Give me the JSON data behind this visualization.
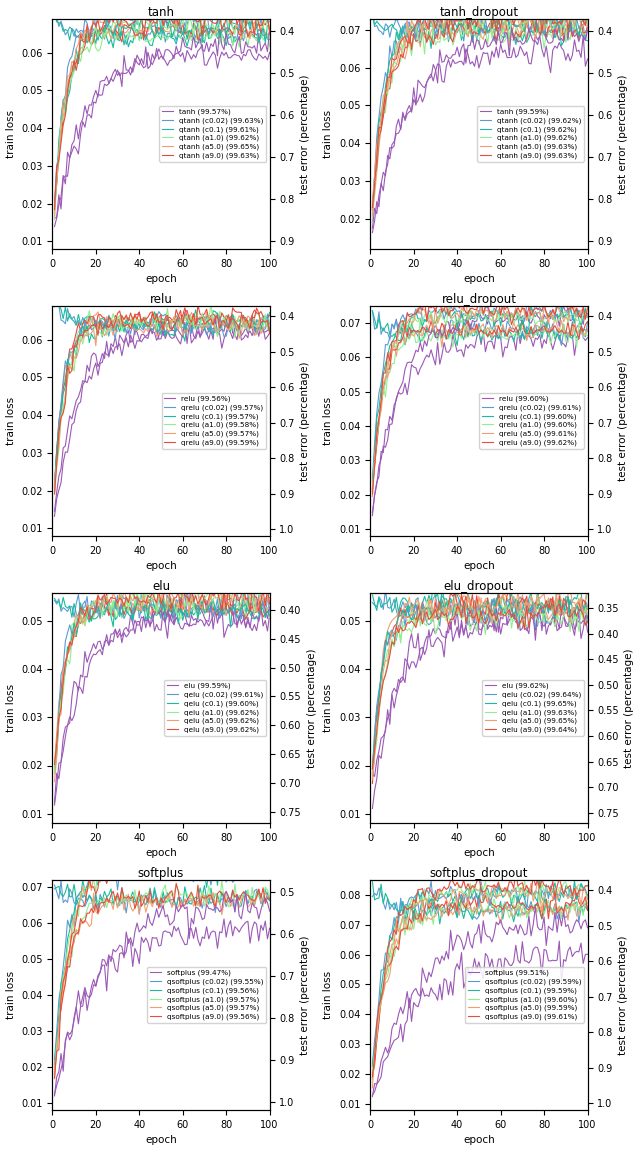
{
  "subplots": [
    {
      "title": "tanh",
      "base_name": "tanh",
      "variants": [
        "tanh",
        "qtanh (c0.02)",
        "qtanh (c0.1)",
        "qtanh (a1.0)",
        "qtanh (a5.0)",
        "qtanh (a9.0)"
      ],
      "accuracies": [
        "99.57%",
        "99.63%",
        "99.61%",
        "99.62%",
        "99.65%",
        "99.63%"
      ],
      "train_ylim": [
        0.008,
        0.069
      ],
      "test_ylim": [
        0.92,
        0.37
      ],
      "train_final": [
        0.059,
        0.065,
        0.064,
        0.064,
        0.066,
        0.066
      ],
      "train_noise": [
        0.0015,
        0.0012,
        0.0012,
        0.0012,
        0.0012,
        0.0012
      ],
      "train_steep": [
        0.08,
        0.22,
        0.2,
        0.18,
        0.18,
        0.18
      ],
      "train_init": [
        0.01,
        0.071,
        0.071,
        0.01,
        0.01,
        0.01
      ],
      "test_final": [
        0.43,
        0.37,
        0.39,
        0.38,
        0.35,
        0.37
      ],
      "test_init": [
        0.9,
        0.9,
        0.9,
        0.9,
        0.9,
        0.9
      ],
      "test_steep": [
        0.06,
        0.2,
        0.18,
        0.16,
        0.16,
        0.16
      ],
      "test_noise": [
        0.015,
        0.015,
        0.015,
        0.015,
        0.015,
        0.015
      ]
    },
    {
      "title": "tanh_dropout",
      "base_name": "tanh",
      "variants": [
        "tanh",
        "qtanh (c0.02)",
        "qtanh (c0.1)",
        "qtanh (a1.0)",
        "qtanh (a5.0)",
        "qtanh (a9.0)"
      ],
      "accuracies": [
        "99.59%",
        "99.62%",
        "99.62%",
        "99.62%",
        "99.63%",
        "99.63%"
      ],
      "train_ylim": [
        0.012,
        0.073
      ],
      "test_ylim": [
        0.92,
        0.37
      ],
      "train_final": [
        0.064,
        0.07,
        0.069,
        0.069,
        0.07,
        0.07
      ],
      "train_noise": [
        0.0018,
        0.0015,
        0.0015,
        0.0015,
        0.0015,
        0.0015
      ],
      "train_steep": [
        0.07,
        0.2,
        0.18,
        0.16,
        0.16,
        0.16
      ],
      "train_init": [
        0.013,
        0.073,
        0.073,
        0.013,
        0.013,
        0.013
      ],
      "test_final": [
        0.41,
        0.38,
        0.38,
        0.38,
        0.37,
        0.37
      ],
      "test_init": [
        0.9,
        0.9,
        0.9,
        0.9,
        0.9,
        0.9
      ],
      "test_steep": [
        0.06,
        0.2,
        0.18,
        0.16,
        0.16,
        0.16
      ],
      "test_noise": [
        0.015,
        0.015,
        0.015,
        0.015,
        0.015,
        0.015
      ]
    },
    {
      "title": "relu",
      "base_name": "relu",
      "variants": [
        "relu",
        "qrelu (c0.02)",
        "qrelu (c0.1)",
        "qrelu (a1.0)",
        "qrelu (a5.0)",
        "qrelu (a9.0)"
      ],
      "accuracies": [
        "99.56%",
        "99.57%",
        "99.57%",
        "99.58%",
        "99.57%",
        "99.59%"
      ],
      "train_ylim": [
        0.008,
        0.069
      ],
      "test_ylim": [
        1.02,
        0.37
      ],
      "train_final": [
        0.062,
        0.065,
        0.065,
        0.065,
        0.065,
        0.066
      ],
      "train_noise": [
        0.0015,
        0.0012,
        0.0012,
        0.0012,
        0.0012,
        0.0012
      ],
      "train_steep": [
        0.1,
        0.26,
        0.24,
        0.22,
        0.22,
        0.22
      ],
      "train_init": [
        0.01,
        0.071,
        0.071,
        0.01,
        0.01,
        0.01
      ],
      "test_final": [
        0.44,
        0.43,
        0.43,
        0.42,
        0.43,
        0.41
      ],
      "test_init": [
        1.0,
        1.0,
        1.0,
        1.0,
        1.0,
        1.0
      ],
      "test_steep": [
        0.08,
        0.24,
        0.22,
        0.18,
        0.18,
        0.18
      ],
      "test_noise": [
        0.015,
        0.015,
        0.015,
        0.015,
        0.015,
        0.015
      ]
    },
    {
      "title": "relu_dropout",
      "base_name": "relu",
      "variants": [
        "relu",
        "qrelu (c0.02)",
        "qrelu (c0.1)",
        "qrelu (a1.0)",
        "qrelu (a5.0)",
        "qrelu (a9.0)"
      ],
      "accuracies": [
        "99.60%",
        "99.61%",
        "99.60%",
        "99.60%",
        "99.61%",
        "99.62%"
      ],
      "train_ylim": [
        0.008,
        0.075
      ],
      "test_ylim": [
        1.02,
        0.37
      ],
      "train_final": [
        0.065,
        0.068,
        0.067,
        0.067,
        0.068,
        0.068
      ],
      "train_noise": [
        0.0018,
        0.0015,
        0.0015,
        0.0015,
        0.0015,
        0.0015
      ],
      "train_steep": [
        0.09,
        0.24,
        0.22,
        0.2,
        0.2,
        0.2
      ],
      "train_init": [
        0.01,
        0.073,
        0.073,
        0.01,
        0.01,
        0.01
      ],
      "test_final": [
        0.4,
        0.39,
        0.4,
        0.4,
        0.39,
        0.38
      ],
      "test_init": [
        1.0,
        1.0,
        1.0,
        1.0,
        1.0,
        1.0
      ],
      "test_steep": [
        0.08,
        0.24,
        0.22,
        0.18,
        0.18,
        0.18
      ],
      "test_noise": [
        0.015,
        0.015,
        0.015,
        0.015,
        0.015,
        0.015
      ]
    },
    {
      "title": "elu",
      "base_name": "elu",
      "variants": [
        "elu",
        "qelu (c0.02)",
        "qelu (c0.1)",
        "qelu (a1.0)",
        "qelu (a5.0)",
        "qelu (a9.0)"
      ],
      "accuracies": [
        "99.59%",
        "99.61%",
        "99.60%",
        "99.62%",
        "99.62%",
        "99.62%"
      ],
      "train_ylim": [
        0.008,
        0.056
      ],
      "test_ylim": [
        0.77,
        0.37
      ],
      "train_final": [
        0.05,
        0.053,
        0.052,
        0.053,
        0.053,
        0.053
      ],
      "train_noise": [
        0.0015,
        0.0012,
        0.0012,
        0.0012,
        0.0012,
        0.0012
      ],
      "train_steep": [
        0.1,
        0.26,
        0.24,
        0.22,
        0.22,
        0.22
      ],
      "train_init": [
        0.01,
        0.055,
        0.055,
        0.01,
        0.01,
        0.01
      ],
      "test_final": [
        0.41,
        0.39,
        0.4,
        0.38,
        0.38,
        0.38
      ],
      "test_init": [
        0.75,
        0.75,
        0.75,
        0.75,
        0.75,
        0.75
      ],
      "test_steep": [
        0.08,
        0.24,
        0.22,
        0.18,
        0.18,
        0.18
      ],
      "test_noise": [
        0.012,
        0.012,
        0.012,
        0.012,
        0.012,
        0.012
      ]
    },
    {
      "title": "elu_dropout",
      "base_name": "elu",
      "variants": [
        "elu",
        "qelu (c0.02)",
        "qelu (c0.1)",
        "qelu (a1.0)",
        "qelu (a5.0)",
        "qelu (a9.0)"
      ],
      "accuracies": [
        "99.62%",
        "99.64%",
        "99.65%",
        "99.63%",
        "99.65%",
        "99.64%"
      ],
      "train_ylim": [
        0.008,
        0.056
      ],
      "test_ylim": [
        0.77,
        0.32
      ],
      "train_final": [
        0.05,
        0.053,
        0.054,
        0.052,
        0.054,
        0.053
      ],
      "train_noise": [
        0.0018,
        0.0015,
        0.0015,
        0.0015,
        0.0015,
        0.0015
      ],
      "train_steep": [
        0.09,
        0.24,
        0.22,
        0.2,
        0.22,
        0.22
      ],
      "train_init": [
        0.01,
        0.055,
        0.055,
        0.01,
        0.01,
        0.01
      ],
      "test_final": [
        0.38,
        0.36,
        0.35,
        0.37,
        0.35,
        0.36
      ],
      "test_init": [
        0.75,
        0.75,
        0.75,
        0.75,
        0.75,
        0.75
      ],
      "test_steep": [
        0.08,
        0.24,
        0.22,
        0.18,
        0.18,
        0.18
      ],
      "test_noise": [
        0.012,
        0.012,
        0.012,
        0.012,
        0.012,
        0.012
      ]
    },
    {
      "title": "softplus",
      "base_name": "softplus",
      "variants": [
        "softplus",
        "qsoftplus (c0.02)",
        "qsoftplus (c0.1)",
        "qsoftplus (a1.0)",
        "qsoftplus (a5.0)",
        "qsoftplus (a9.0)"
      ],
      "accuracies": [
        "99.47%",
        "99.55%",
        "99.56%",
        "99.57%",
        "99.57%",
        "99.56%"
      ],
      "train_ylim": [
        0.008,
        0.072
      ],
      "test_ylim": [
        1.02,
        0.47
      ],
      "train_final": [
        0.058,
        0.066,
        0.067,
        0.067,
        0.066,
        0.067
      ],
      "train_noise": [
        0.002,
        0.0015,
        0.0015,
        0.0015,
        0.0015,
        0.0015
      ],
      "train_steep": [
        0.06,
        0.2,
        0.18,
        0.16,
        0.16,
        0.16
      ],
      "train_init": [
        0.01,
        0.071,
        0.071,
        0.01,
        0.01,
        0.01
      ],
      "test_final": [
        0.53,
        0.45,
        0.44,
        0.43,
        0.43,
        0.44
      ],
      "test_init": [
        1.0,
        1.0,
        1.0,
        1.0,
        1.0,
        1.0
      ],
      "test_steep": [
        0.05,
        0.18,
        0.16,
        0.14,
        0.14,
        0.14
      ],
      "test_noise": [
        0.018,
        0.015,
        0.015,
        0.015,
        0.015,
        0.015
      ]
    },
    {
      "title": "softplus_dropout",
      "base_name": "softplus",
      "variants": [
        "softplus",
        "qsoftplus (c0.02)",
        "qsoftplus (c0.1)",
        "qsoftplus (a1.0)",
        "qsoftplus (a5.0)",
        "qsoftplus (a9.0)"
      ],
      "accuracies": [
        "99.51%",
        "99.59%",
        "99.59%",
        "99.60%",
        "99.59%",
        "99.61%"
      ],
      "train_ylim": [
        0.008,
        0.085
      ],
      "test_ylim": [
        1.02,
        0.37
      ],
      "train_final": [
        0.06,
        0.075,
        0.075,
        0.076,
        0.075,
        0.077
      ],
      "train_noise": [
        0.0025,
        0.0018,
        0.0018,
        0.0018,
        0.0018,
        0.0018
      ],
      "train_steep": [
        0.05,
        0.18,
        0.16,
        0.14,
        0.14,
        0.14
      ],
      "train_init": [
        0.01,
        0.083,
        0.083,
        0.01,
        0.01,
        0.01
      ],
      "test_final": [
        0.49,
        0.41,
        0.41,
        0.4,
        0.41,
        0.39
      ],
      "test_init": [
        1.0,
        1.0,
        1.0,
        1.0,
        1.0,
        1.0
      ],
      "test_steep": [
        0.05,
        0.18,
        0.16,
        0.14,
        0.14,
        0.14
      ],
      "test_noise": [
        0.018,
        0.015,
        0.015,
        0.015,
        0.015,
        0.015
      ]
    }
  ],
  "colors": [
    "#9B59B6",
    "#5B9BD5",
    "#1ABC9C",
    "#90EE90",
    "#F0A070",
    "#E74C3C"
  ],
  "line_width": 0.8,
  "epochs": 100,
  "figsize": [
    6.4,
    11.51
  ],
  "dpi": 100
}
